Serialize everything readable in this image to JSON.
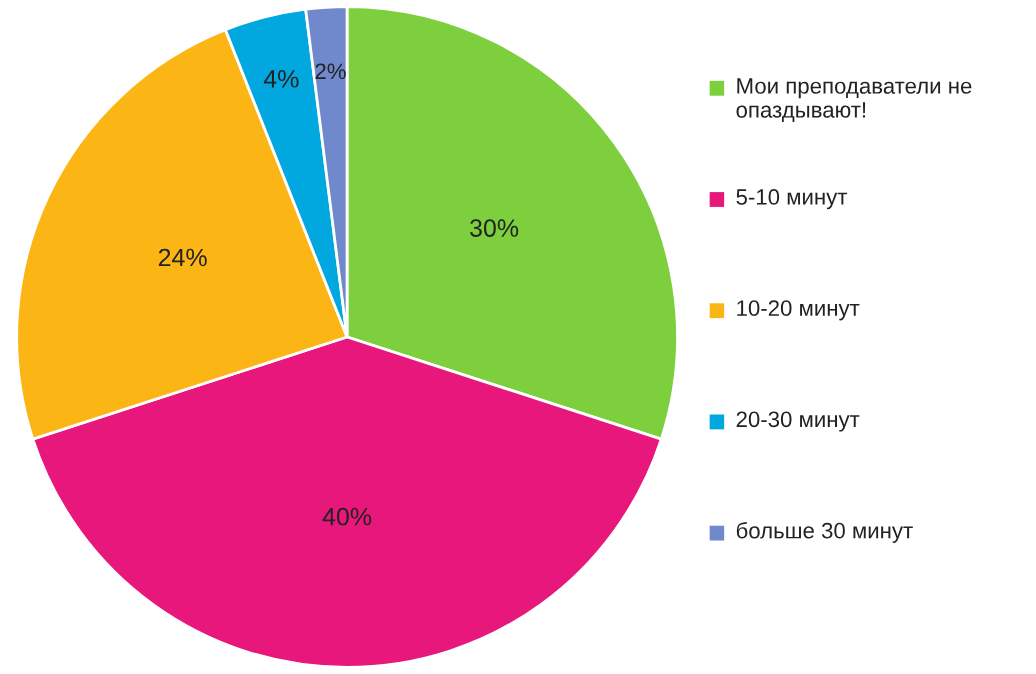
{
  "chart_data": {
    "type": "pie",
    "categories": [
      "Мои преподаватели не опаздывают!",
      "5-10 минут",
      "10-20 минут",
      "20-30 минут",
      "больше 30 минут"
    ],
    "values": [
      30,
      40,
      24,
      4,
      2
    ],
    "value_labels": [
      "30%",
      "40%",
      "24%",
      "4%",
      "2%"
    ],
    "colors": [
      "#7ecf3d",
      "#e8177b",
      "#fbb515",
      "#00a8df",
      "#7088cc"
    ],
    "legend": "right"
  }
}
